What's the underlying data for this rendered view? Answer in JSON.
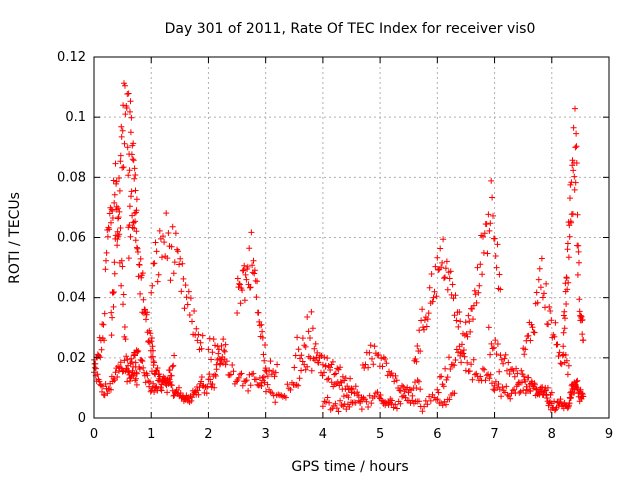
{
  "chart_data": {
    "type": "scatter",
    "title": "Day 301 of 2011, Rate Of TEC Index for receiver vis0",
    "xlabel": "GPS time / hours",
    "ylabel": "ROTI / TECUs",
    "xlim": [
      0,
      9
    ],
    "ylim": [
      0,
      0.12
    ],
    "xticks": [
      "0",
      "1",
      "2",
      "3",
      "4",
      "5",
      "6",
      "7",
      "8",
      "9"
    ],
    "yticks": [
      "0",
      "0.02",
      "0.04",
      "0.06",
      "0.08",
      "0.1",
      "0.12"
    ],
    "grid": true,
    "marker": "+",
    "color": "#ff0000",
    "series": [
      {
        "name": "ROTI",
        "note": "dense scatter of ~1 point per 30 s; representative trace segments listed",
        "segments": [
          {
            "t0": 0.0,
            "t1": 0.75,
            "v": [
              0.015,
              0.018,
              0.022,
              0.025,
              0.03,
              0.055,
              0.062,
              0.07,
              0.078,
              0.075,
              0.06,
              0.05,
              0.03,
              0.02,
              0.015,
              0.017,
              0.02,
              0.014
            ]
          },
          {
            "t0": 0.0,
            "t1": 0.75,
            "v": [
              0.02,
              0.012,
              0.011,
              0.01,
              0.009,
              0.012,
              0.014,
              0.018,
              0.016,
              0.015,
              0.014,
              0.013,
              0.012
            ]
          },
          {
            "t0": 0.3,
            "t1": 0.75,
            "v": [
              0.03,
              0.04,
              0.05,
              0.065,
              0.072,
              0.085,
              0.09,
              0.1,
              0.106,
              0.098,
              0.094,
              0.085,
              0.08,
              0.068,
              0.06
            ]
          },
          {
            "t0": 0.6,
            "t1": 1.05,
            "v": [
              0.06,
              0.07,
              0.075,
              0.08,
              0.065,
              0.055,
              0.045,
              0.04,
              0.035,
              0.03,
              0.025,
              0.022,
              0.02
            ]
          },
          {
            "t0": 0.7,
            "t1": 1.4,
            "v": [
              0.025,
              0.02,
              0.018,
              0.015,
              0.012,
              0.011,
              0.01,
              0.012,
              0.011,
              0.013,
              0.012,
              0.015,
              0.018
            ]
          },
          {
            "t0": 1.0,
            "t1": 1.9,
            "v": [
              0.045,
              0.05,
              0.055,
              0.06,
              0.057,
              0.055,
              0.05,
              0.045,
              0.04,
              0.035,
              0.03,
              0.027,
              0.025
            ]
          },
          {
            "t0": 1.0,
            "t1": 1.5,
            "v": [
              0.018,
              0.016,
              0.014,
              0.012,
              0.012,
              0.011,
              0.01,
              0.009,
              0.009,
              0.01
            ]
          },
          {
            "t0": 1.5,
            "t1": 2.3,
            "v": [
              0.008,
              0.007,
              0.006,
              0.007,
              0.008,
              0.009,
              0.01,
              0.012,
              0.011,
              0.013,
              0.012,
              0.015,
              0.02,
              0.022,
              0.025
            ]
          },
          {
            "t0": 2.0,
            "t1": 3.2,
            "v": [
              0.025,
              0.022,
              0.02,
              0.018,
              0.016,
              0.015,
              0.014,
              0.013,
              0.012,
              0.011,
              0.012,
              0.014,
              0.016,
              0.015
            ]
          },
          {
            "t0": 2.5,
            "t1": 3.0,
            "v": [
              0.04,
              0.045,
              0.048,
              0.045,
              0.05,
              0.053,
              0.048,
              0.04,
              0.03,
              0.025,
              0.02
            ]
          },
          {
            "t0": 2.9,
            "t1": 4.5,
            "v": [
              0.012,
              0.01,
              0.008,
              0.007,
              0.009,
              0.01,
              0.012,
              0.015,
              0.018,
              0.02,
              0.016,
              0.014,
              0.012,
              0.01,
              0.009,
              0.008
            ]
          },
          {
            "t0": 3.5,
            "t1": 4.7,
            "v": [
              0.02,
              0.025,
              0.028,
              0.03,
              0.022,
              0.02,
              0.018,
              0.016,
              0.014,
              0.012,
              0.01,
              0.008,
              0.007
            ]
          },
          {
            "t0": 4.0,
            "t1": 5.2,
            "v": [
              0.006,
              0.005,
              0.004,
              0.004,
              0.005,
              0.006,
              0.005,
              0.005,
              0.006,
              0.007,
              0.006,
              0.005
            ]
          },
          {
            "t0": 4.7,
            "t1": 5.7,
            "v": [
              0.018,
              0.02,
              0.022,
              0.02,
              0.018,
              0.015,
              0.012,
              0.01,
              0.009,
              0.008,
              0.01,
              0.012
            ]
          },
          {
            "t0": 5.0,
            "t1": 6.3,
            "v": [
              0.005,
              0.006,
              0.004,
              0.005,
              0.006,
              0.005,
              0.004,
              0.006,
              0.007,
              0.005,
              0.006,
              0.008
            ]
          },
          {
            "t0": 5.6,
            "t1": 6.4,
            "v": [
              0.02,
              0.025,
              0.03,
              0.035,
              0.04,
              0.045,
              0.048,
              0.05,
              0.055,
              0.045,
              0.04,
              0.035,
              0.03
            ]
          },
          {
            "t0": 6.0,
            "t1": 7.0,
            "v": [
              0.01,
              0.012,
              0.015,
              0.02,
              0.022,
              0.02,
              0.018,
              0.016,
              0.015,
              0.014,
              0.012,
              0.01
            ]
          },
          {
            "t0": 6.4,
            "t1": 7.1,
            "v": [
              0.02,
              0.025,
              0.03,
              0.035,
              0.038,
              0.045,
              0.055,
              0.063,
              0.068,
              0.073,
              0.06,
              0.045
            ]
          },
          {
            "t0": 6.9,
            "t1": 7.9,
            "v": [
              0.025,
              0.022,
              0.02,
              0.018,
              0.016,
              0.015,
              0.014,
              0.012,
              0.01,
              0.009,
              0.008,
              0.01
            ]
          },
          {
            "t0": 7.0,
            "t1": 8.0,
            "v": [
              0.012,
              0.01,
              0.009,
              0.008,
              0.009,
              0.01,
              0.011,
              0.012,
              0.01,
              0.009,
              0.008,
              0.007
            ]
          },
          {
            "t0": 7.5,
            "t1": 8.3,
            "v": [
              0.02,
              0.025,
              0.03,
              0.035,
              0.05,
              0.045,
              0.035,
              0.03,
              0.025,
              0.02,
              0.018,
              0.015
            ]
          },
          {
            "t0": 7.9,
            "t1": 8.35,
            "v": [
              0.006,
              0.005,
              0.004,
              0.004,
              0.005,
              0.004,
              0.003,
              0.004,
              0.006
            ]
          },
          {
            "t0": 8.2,
            "t1": 8.55,
            "v": [
              0.03,
              0.035,
              0.045,
              0.05,
              0.062,
              0.068,
              0.077,
              0.082,
              0.087,
              0.091,
              0.06,
              0.045,
              0.035,
              0.03,
              0.028
            ]
          },
          {
            "t0": 8.3,
            "t1": 8.55,
            "v": [
              0.006,
              0.008,
              0.01,
              0.012,
              0.011,
              0.009,
              0.008,
              0.007,
              0.006
            ]
          }
        ]
      }
    ]
  }
}
